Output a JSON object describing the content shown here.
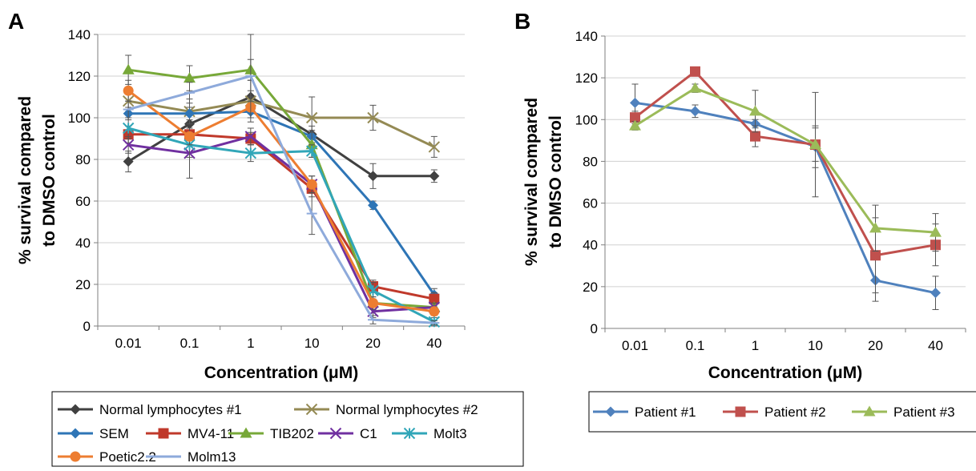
{
  "chart_data": [
    {
      "panel": "A",
      "type": "line",
      "ylabel_lines": [
        "% survival compared",
        "to DMSO control"
      ],
      "xlabel": "Concentration (μM)",
      "categories": [
        "0.01",
        "0.1",
        "1",
        "10",
        "20",
        "40"
      ],
      "ylim": [
        0,
        140
      ],
      "yticks": [
        0,
        20,
        40,
        60,
        80,
        100,
        120,
        140
      ],
      "grid": true,
      "legend_position": "bottom",
      "series": [
        {
          "name": "Normal lymphocytes #1",
          "color": "#404040",
          "marker": "diamond",
          "values": [
            79,
            97,
            110,
            92,
            72,
            72
          ],
          "errors": [
            5,
            6,
            8,
            4,
            6,
            3
          ]
        },
        {
          "name": "Normal lymphocytes #2",
          "color": "#948a54",
          "marker": "x",
          "values": [
            108,
            103,
            108,
            100,
            100,
            86
          ],
          "errors": [
            5,
            6,
            5,
            10,
            6,
            5
          ]
        },
        {
          "name": "SEM",
          "color": "#2e75b6",
          "marker": "diamond",
          "values": [
            102,
            102,
            103,
            91,
            58,
            15
          ],
          "errors": [
            3,
            3,
            5,
            3,
            2,
            3
          ]
        },
        {
          "name": "MV4-11",
          "color": "#c0392b",
          "marker": "square",
          "values": [
            92,
            92,
            90,
            66,
            19,
            13
          ],
          "errors": [
            4,
            3,
            3,
            4,
            3,
            3
          ]
        },
        {
          "name": "TIB202",
          "color": "#77a838",
          "marker": "triangle",
          "values": [
            123,
            119,
            123,
            87,
            11,
            9
          ],
          "errors": [
            7,
            6,
            5,
            6,
            3,
            2
          ]
        },
        {
          "name": "C1",
          "color": "#7030a0",
          "marker": "x",
          "values": [
            87,
            83,
            91,
            68,
            7,
            9
          ],
          "errors": [
            4,
            12,
            4,
            4,
            3,
            2
          ]
        },
        {
          "name": "Molt3",
          "color": "#31a6b8",
          "marker": "asterisk",
          "values": [
            95,
            87,
            83,
            84,
            17,
            2
          ],
          "errors": [
            5,
            6,
            4,
            3,
            4,
            2
          ]
        },
        {
          "name": "Poetic2.2",
          "color": "#ed7d31",
          "marker": "circle",
          "values": [
            113,
            91,
            105,
            68,
            11,
            7
          ],
          "errors": [
            5,
            4,
            5,
            4,
            3,
            2
          ]
        },
        {
          "name": "Molm13",
          "color": "#8eaadb",
          "marker": "dash",
          "values": [
            104,
            112,
            120,
            54,
            3,
            1.5
          ],
          "errors": [
            4,
            5,
            20,
            10,
            2,
            1
          ]
        }
      ]
    },
    {
      "panel": "B",
      "type": "line",
      "ylabel_lines": [
        "% survival compared",
        "to DMSO control"
      ],
      "xlabel": "Concentration (μM)",
      "categories": [
        "0.01",
        "0.1",
        "1",
        "10",
        "20",
        "40"
      ],
      "ylim": [
        0,
        140
      ],
      "yticks": [
        0,
        20,
        40,
        60,
        80,
        100,
        120,
        140
      ],
      "grid": true,
      "legend_position": "bottom",
      "series": [
        {
          "name": "Patient #1",
          "color": "#4f81bd",
          "marker": "diamond",
          "values": [
            108,
            104,
            98,
            87,
            23,
            17
          ],
          "errors": [
            9,
            3,
            2,
            10,
            10,
            8
          ]
        },
        {
          "name": "Patient #2",
          "color": "#c0504d",
          "marker": "square",
          "values": [
            101,
            123,
            92,
            88,
            35,
            40
          ],
          "errors": [
            3,
            2,
            5,
            25,
            18,
            10
          ]
        },
        {
          "name": "Patient #3",
          "color": "#9bbb59",
          "marker": "triangle",
          "values": [
            97,
            115,
            104,
            88,
            48,
            46
          ],
          "errors": [
            2,
            2,
            10,
            8,
            11,
            9
          ]
        }
      ]
    }
  ]
}
